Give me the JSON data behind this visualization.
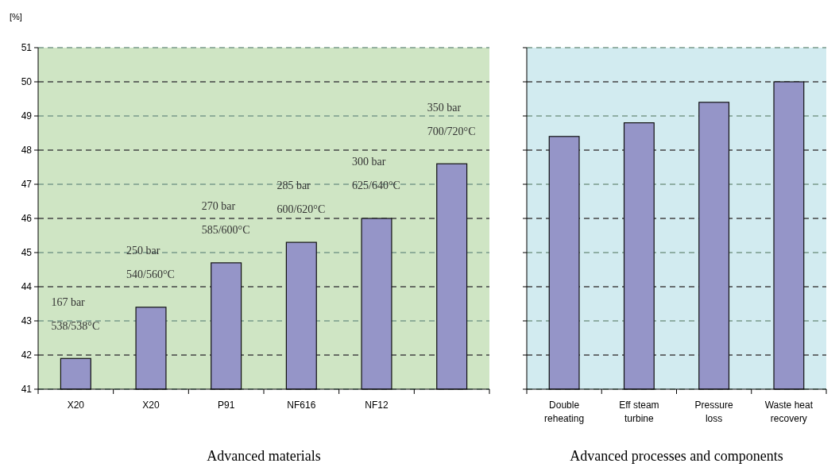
{
  "chart_data": [
    {
      "type": "bar",
      "ylabel": "[%]",
      "xlabel": "Advanced materials",
      "categories": [
        "X20",
        "X20",
        "P91",
        "NF616",
        "NF12",
        null
      ],
      "values": [
        41.9,
        43.4,
        44.7,
        45.3,
        46.0,
        47.6
      ],
      "color": "#9595c8",
      "ylim": [
        41,
        51
      ],
      "yticks": [
        41,
        42,
        43,
        44,
        45,
        46,
        47,
        48,
        49,
        50,
        51
      ],
      "grid": "y",
      "annotations": [
        "167 bar\n538/538°C",
        "250 bar\n540/560°C",
        "270 bar\n585/600°C",
        "285 bar\n600/620°C",
        "300 bar\n625/640°C",
        "350 bar\n700/720°C"
      ]
    },
    {
      "type": "bar",
      "xlabel": "Advanced processes and components",
      "categories": [
        "Double\nreheating",
        "Eff steam\nturbine",
        "Pressure\nloss",
        "Waste heat\nrecovery"
      ],
      "values": [
        48.4,
        48.8,
        49.4,
        50.0
      ],
      "color": "#9595c8",
      "ylim": [
        41,
        51
      ],
      "yticks": [
        41,
        42,
        43,
        44,
        45,
        46,
        47,
        48,
        49,
        50,
        51
      ],
      "grid": "y",
      "tick_labels": "x"
    }
  ]
}
